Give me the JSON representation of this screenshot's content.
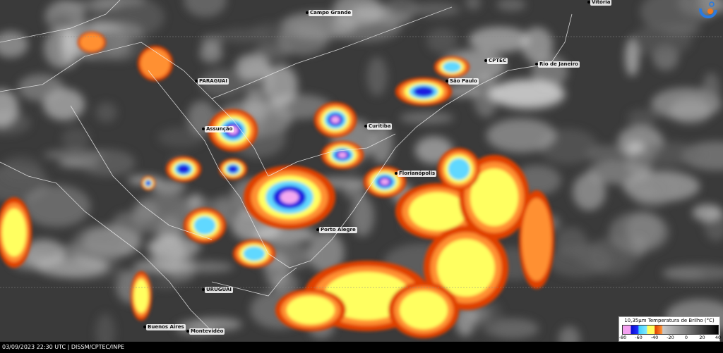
{
  "map": {
    "product": "10,35µm Temperatura de Brilho",
    "cities": [
      {
        "name": "Campo Grande"
      },
      {
        "name": "Vitória"
      },
      {
        "name": "CPTEC"
      },
      {
        "name": "Rio de Janeiro"
      },
      {
        "name": "São Paulo"
      },
      {
        "name": "PARAGUAI"
      },
      {
        "name": "Assunção"
      },
      {
        "name": "Curitiba"
      },
      {
        "name": "Florianópolis"
      },
      {
        "name": "Porto Alegre"
      },
      {
        "name": "URUGUAI"
      },
      {
        "name": "Buenos Aires"
      },
      {
        "name": "Montevidéo"
      }
    ]
  },
  "legend": {
    "title": "10,35µm Temperatura de Brilho (°C)",
    "ticks": [
      "-80",
      "-60",
      "-40",
      "-20",
      "0",
      "20",
      "40"
    ],
    "colors": {
      "-80": "#f4a0f0",
      "-70": "#0a0ad0",
      "-60": "#40d0ff",
      "-50": "#ffff60",
      "-40": "#e04000",
      "-30": "#c8c8c8",
      "40": "#000000"
    }
  },
  "footer": {
    "text": "03/09/2023 22:30 UTC | DISSM/CPTEC/INPE"
  },
  "logo": {
    "name": "cptec-logo-icon"
  }
}
